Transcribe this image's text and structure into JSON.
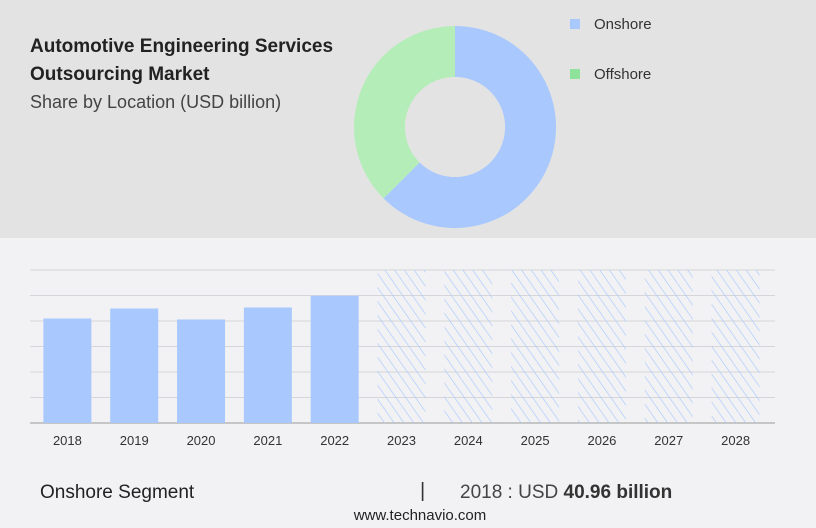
{
  "header": {
    "title": "Automotive Engineering Services Outsourcing Market",
    "subtitle": "Share by Location (USD billion)"
  },
  "colors": {
    "onshore": "#a8c8fe",
    "offshore": "#b5edb9",
    "hatch": "#a8c8fe"
  },
  "chart_data": [
    {
      "type": "pie",
      "donut": true,
      "slices": [
        {
          "name": "Onshore",
          "value": 62.5
        },
        {
          "name": "Offshore",
          "value": 37.5
        }
      ],
      "legend": "top-right"
    },
    {
      "type": "bar",
      "categories": [
        "2018",
        "2019",
        "2020",
        "2021",
        "2022",
        "2023",
        "2024",
        "2025",
        "2026",
        "2027",
        "2028"
      ],
      "values": [
        40.96,
        44.9,
        40.6,
        45.3,
        49.9,
        null,
        null,
        null,
        null,
        null,
        null
      ],
      "forecast_hatched": [
        "2023",
        "2024",
        "2025",
        "2026",
        "2027",
        "2028"
      ],
      "ylim": [
        0,
        60
      ],
      "grid": true
    }
  ],
  "footer": {
    "segment": "Onshore Segment",
    "separator": "|",
    "year_label": "2018 : USD",
    "value": "40.96 billion",
    "site": "www.technavio.com"
  }
}
